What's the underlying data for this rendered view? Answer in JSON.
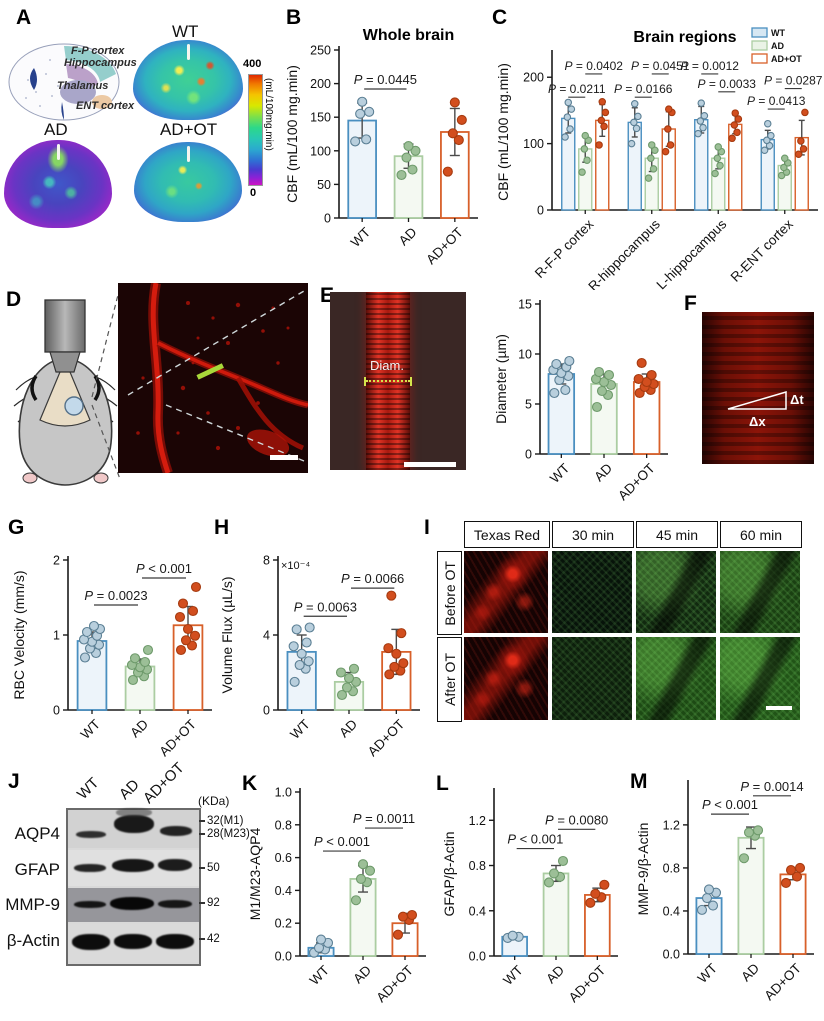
{
  "panel_labels": {
    "A": "A",
    "B": "B",
    "C": "C",
    "D": "D",
    "E": "E",
    "F": "F",
    "G": "G",
    "H": "H",
    "I": "I",
    "J": "J",
    "K": "K",
    "L": "L",
    "M": "M"
  },
  "group_colors": {
    "wt": {
      "stroke": "#4a8fc0",
      "fill": "#edf4fa",
      "pt": "#b9cfdd",
      "ptStroke": "#5b7f94",
      "legendFill": "#d6e7f3"
    },
    "ad": {
      "stroke": "#abcda2",
      "fill": "#f4f9f2",
      "pt": "#9cbf97",
      "ptStroke": "#6e9a6b",
      "legendFill": "#eaf3e6"
    },
    "adot": {
      "stroke": "#d8602a",
      "fill": "#ffffff",
      "pt": "#d24e1e",
      "ptStroke": "#a63b10",
      "legendFill": "#ffffff"
    }
  },
  "panelA": {
    "image_labels": [
      "WT",
      "AD",
      "AD+OT"
    ],
    "region_labels": [
      "F-P cortex",
      "Hippocampus",
      "Thalamus",
      "ENT cortex"
    ],
    "colorbar_max": "400",
    "colorbar_min": "0",
    "colorbar_unit": "(mL/100mg.min)"
  },
  "panelE_img": {
    "diam_label": "Diam."
  },
  "panelF": {
    "dt_label": "Δt",
    "dx_label": "Δx"
  },
  "panelI": {
    "col_headers": [
      "Texas Red",
      "30 min",
      "45 min",
      "60 min"
    ],
    "row_headers": [
      "Before OT",
      "After OT"
    ]
  },
  "panelJ": {
    "lane_labels": [
      "WT",
      "AD",
      "AD+OT"
    ],
    "kda_label": "(KDa)",
    "protein_labels": [
      "AQP4",
      "GFAP",
      "MMP-9",
      "β-Actin"
    ],
    "marker_labels": [
      "32(M1)",
      "28(M23)",
      "50",
      "92",
      "42"
    ]
  },
  "chart_data": [
    {
      "id": "B",
      "type": "bar",
      "title": "Whole brain",
      "ylabel": "CBF (mL/100 mg.min)",
      "ylim": [
        0,
        250
      ],
      "yticks": [
        0,
        50,
        100,
        150,
        200,
        250
      ],
      "ytick_labels": [
        "0",
        "50",
        "100",
        "150",
        "200",
        "250"
      ],
      "categories": [
        "WT",
        "AD",
        "AD+OT"
      ],
      "values": [
        145,
        92,
        128
      ],
      "errors": [
        26,
        18,
        35
      ],
      "points": [
        [
          114,
          117,
          155,
          158,
          173
        ],
        [
          64,
          72,
          90,
          100,
          107
        ],
        [
          69,
          116,
          126,
          146,
          172
        ]
      ],
      "pvalues": [
        {
          "text": "P = 0.0445",
          "pair": [
            0,
            1
          ],
          "y": 192
        }
      ]
    },
    {
      "id": "C",
      "type": "grouped-bar",
      "title": "Brain regions",
      "ylabel": "CBF (mL/100 mg.min)",
      "ylim": [
        0,
        235
      ],
      "yticks": [
        0,
        100,
        200
      ],
      "ytick_labels": [
        "0",
        "100",
        "200"
      ],
      "categories": [
        "R-F-P cortex",
        "R-hippocampus",
        "L-hippocampus",
        "R-ENT cortex"
      ],
      "legend": [
        "WT",
        "AD",
        "AD+OT"
      ],
      "series": [
        {
          "name": "WT",
          "values": [
            138,
            132,
            136,
            106
          ],
          "errors": [
            22,
            22,
            20,
            14
          ],
          "points": [
            [
              110,
              122,
              140,
              152,
              162
            ],
            [
              100,
              123,
              132,
              141,
              160
            ],
            [
              115,
              124,
              134,
              142,
              161
            ],
            [
              90,
              97,
              105,
              112,
              130
            ]
          ]
        },
        {
          "name": "AD",
          "values": [
            92,
            78,
            78,
            67
          ],
          "errors": [
            20,
            20,
            16,
            12
          ],
          "points": [
            [
              57,
              75,
              92,
              105,
              112
            ],
            [
              48,
              62,
              78,
              90,
              98
            ],
            [
              55,
              67,
              78,
              88,
              95
            ],
            [
              52,
              57,
              64,
              71,
              78
            ]
          ]
        },
        {
          "name": "AD+OT",
          "values": [
            135,
            122,
            129,
            109
          ],
          "errors": [
            24,
            26,
            14,
            26
          ],
          "points": [
            [
              98,
              126,
              135,
              147,
              163
            ],
            [
              88,
              98,
              122,
              147,
              152
            ],
            [
              108,
              117,
              128,
              137,
              146
            ],
            [
              84,
              92,
              104,
              147
            ]
          ]
        }
      ],
      "pvalues": [
        {
          "text": "P = 0.0211",
          "group": 0,
          "pair": [
            0,
            1
          ],
          "y": 170
        },
        {
          "text": "P = 0.0402",
          "group": 0,
          "pair": [
            1,
            2
          ],
          "y": 205
        },
        {
          "text": "P = 0.0166",
          "group": 1,
          "pair": [
            0,
            1
          ],
          "y": 170
        },
        {
          "text": "P = 0.0451",
          "group": 1,
          "pair": [
            1,
            2
          ],
          "y": 205
        },
        {
          "text": "P = 0.0033",
          "group": 2,
          "pair": [
            1,
            2
          ],
          "y": 178
        },
        {
          "text": "P = 0.0012",
          "group": 2,
          "pair": [
            0,
            1
          ],
          "y": 205
        },
        {
          "text": "P = 0.0413",
          "group": 3,
          "pair": [
            0,
            1
          ],
          "y": 152
        },
        {
          "text": "P = 0.0287",
          "group": 3,
          "pair": [
            1,
            2
          ],
          "y": 183
        }
      ]
    },
    {
      "id": "E",
      "type": "bar",
      "ylabel": "Diameter (µm)",
      "ylim": [
        0,
        15
      ],
      "yticks": [
        0,
        5,
        10,
        15
      ],
      "ytick_labels": [
        "0",
        "5",
        "10",
        "15"
      ],
      "categories": [
        "WT",
        "AD",
        "AD+OT"
      ],
      "values": [
        8.0,
        7.0,
        7.2
      ],
      "errors": [
        1.0,
        1.0,
        0.8
      ],
      "points": [
        [
          6.1,
          6.4,
          7.4,
          7.8,
          8.1,
          8.4,
          8.7,
          9.0,
          9.3
        ],
        [
          4.7,
          5.9,
          6.3,
          6.9,
          7.2,
          7.5,
          7.9,
          8.2
        ],
        [
          6.1,
          6.4,
          6.7,
          7.0,
          7.2,
          7.5,
          7.9,
          9.1
        ]
      ],
      "pvalues": []
    },
    {
      "id": "G",
      "type": "bar",
      "ylabel": "RBC Velocity (mm/s)",
      "ylim": [
        0,
        2
      ],
      "yticks": [
        0,
        1,
        2
      ],
      "ytick_labels": [
        "0",
        "1",
        "2"
      ],
      "categories": [
        "WT",
        "AD",
        "AD+OT"
      ],
      "values": [
        0.92,
        0.58,
        1.13
      ],
      "errors": [
        0.12,
        0.1,
        0.25
      ],
      "points": [
        [
          0.7,
          0.76,
          0.82,
          0.87,
          0.91,
          0.94,
          0.99,
          1.04,
          1.08,
          1.12
        ],
        [
          0.4,
          0.45,
          0.5,
          0.54,
          0.57,
          0.6,
          0.64,
          0.69,
          0.8
        ],
        [
          0.8,
          0.86,
          0.93,
          0.99,
          1.08,
          1.24,
          1.32,
          1.42,
          1.64
        ]
      ],
      "pvalues": [
        {
          "text": "P = 0.0023",
          "pair": [
            0,
            1
          ],
          "y": 1.4
        },
        {
          "text": "P < 0.001",
          "pair": [
            1,
            2
          ],
          "y": 1.76
        }
      ]
    },
    {
      "id": "H",
      "type": "bar",
      "ylabel": "Volume Flux (µL/s)",
      "top_label": "×10⁻⁴",
      "ylim": [
        0,
        8
      ],
      "yticks": [
        0,
        4,
        8
      ],
      "ytick_labels": [
        "0",
        "4",
        "8"
      ],
      "categories": [
        "WT",
        "AD",
        "AD+OT"
      ],
      "values": [
        3.1,
        1.5,
        3.1
      ],
      "errors": [
        0.9,
        0.5,
        1.2
      ],
      "points": [
        [
          1.5,
          2.2,
          2.4,
          2.6,
          3.0,
          3.4,
          3.6,
          4.3,
          4.4
        ],
        [
          0.8,
          1.0,
          1.2,
          1.5,
          1.7,
          2.0,
          2.2
        ],
        [
          1.9,
          2.1,
          2.3,
          2.5,
          3.0,
          3.3,
          4.1,
          6.1
        ]
      ],
      "pvalues": [
        {
          "text": "P = 0.0063",
          "pair": [
            0,
            1
          ],
          "y": 5.0
        },
        {
          "text": "P = 0.0066",
          "pair": [
            1,
            2
          ],
          "y": 6.5
        }
      ]
    },
    {
      "id": "K",
      "type": "bar",
      "ylabel": "M1/M23-AQP4",
      "ylim": [
        0,
        1.0
      ],
      "yticks": [
        0,
        0.2,
        0.4,
        0.6,
        0.8,
        1.0
      ],
      "ytick_labels": [
        "0.0",
        "0.2",
        "0.4",
        "0.6",
        "0.8",
        "1.0"
      ],
      "categories": [
        "WT",
        "AD",
        "AD+OT"
      ],
      "values": [
        0.05,
        0.47,
        0.2
      ],
      "errors": [
        0.03,
        0.08,
        0.06
      ],
      "points": [
        [
          0.02,
          0.04,
          0.05,
          0.08,
          0.1
        ],
        [
          0.34,
          0.45,
          0.47,
          0.52,
          0.56
        ],
        [
          0.13,
          0.22,
          0.24,
          0.25
        ]
      ],
      "pvalues": [
        {
          "text": "P < 0.001",
          "pair": [
            0,
            1
          ],
          "y": 0.64
        },
        {
          "text": "P = 0.0011",
          "pair": [
            1,
            2
          ],
          "y": 0.78
        }
      ]
    },
    {
      "id": "L",
      "type": "bar",
      "ylabel": "GFAP/β-Actin",
      "ylim": [
        0,
        1.45
      ],
      "yticks": [
        0,
        0.4,
        0.8,
        1.2
      ],
      "ytick_labels": [
        "0.0",
        "0.4",
        "0.8",
        "1.2"
      ],
      "categories": [
        "WT",
        "AD",
        "AD+OT"
      ],
      "values": [
        0.17,
        0.73,
        0.54
      ],
      "errors": [
        0.02,
        0.07,
        0.06
      ],
      "points": [
        [
          0.16,
          0.17,
          0.18
        ],
        [
          0.65,
          0.7,
          0.73,
          0.84
        ],
        [
          0.47,
          0.52,
          0.55,
          0.63
        ]
      ],
      "pvalues": [
        {
          "text": "P < 0.001",
          "pair": [
            0,
            1
          ],
          "y": 0.95
        },
        {
          "text": "P = 0.0080",
          "pair": [
            1,
            2
          ],
          "y": 1.12
        }
      ]
    },
    {
      "id": "M",
      "type": "bar",
      "ylabel": "MMP-9/β-Actin",
      "ylim": [
        0,
        1.58
      ],
      "yticks": [
        0,
        0.4,
        0.8,
        1.2
      ],
      "ytick_labels": [
        "0.0",
        "0.4",
        "0.8",
        "1.2"
      ],
      "categories": [
        "WT",
        "AD",
        "AD+OT"
      ],
      "values": [
        0.52,
        1.08,
        0.74
      ],
      "errors": [
        0.07,
        0.1,
        0.05
      ],
      "points": [
        [
          0.41,
          0.45,
          0.52,
          0.57,
          0.6
        ],
        [
          0.89,
          1.1,
          1.13,
          1.15
        ],
        [
          0.66,
          0.72,
          0.78,
          0.8
        ]
      ],
      "pvalues": [
        {
          "text": "P < 0.001",
          "pair": [
            0,
            1
          ],
          "y": 1.3
        },
        {
          "text": "P = 0.0014",
          "pair": [
            1,
            2
          ],
          "y": 1.47
        }
      ]
    }
  ]
}
